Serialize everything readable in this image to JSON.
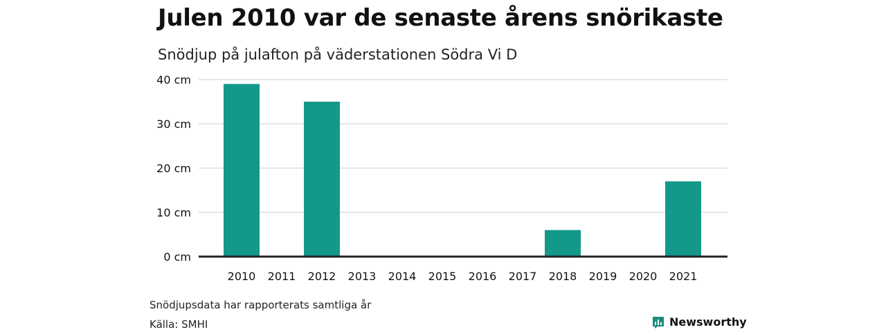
{
  "title": "Julen 2010 var de senaste årens snörikaste",
  "subtitle": "Snödjup på julafton på väderstationen Södra Vi D",
  "note": "Snödjupsdata har rapporterats samtliga år",
  "source": "Källa: SMHI",
  "brand": {
    "name": "Newsworthy",
    "icon": "newsworthy-logo-icon",
    "color": "#1a8c7d"
  },
  "colors": {
    "bar": "#14988a",
    "grid": "#dddddd",
    "baseline": "#222222"
  },
  "chart_data": {
    "type": "bar",
    "categories": [
      "2010",
      "2011",
      "2012",
      "2013",
      "2014",
      "2015",
      "2016",
      "2017",
      "2018",
      "2019",
      "2020",
      "2021"
    ],
    "values": [
      39,
      0,
      35,
      0,
      0,
      0,
      0,
      0,
      6,
      0,
      0,
      17
    ],
    "title": "Julen 2010 var de senaste årens snörikaste",
    "subtitle": "Snödjup på julafton på väderstationen Södra Vi D",
    "xlabel": "",
    "ylabel": "",
    "ylim": [
      0,
      40
    ],
    "yticks": [
      0,
      10,
      20,
      30,
      40
    ],
    "ytick_labels": [
      "0 cm",
      "10 cm",
      "20 cm",
      "30 cm",
      "40 cm"
    ],
    "grid": true,
    "legend": "none"
  }
}
